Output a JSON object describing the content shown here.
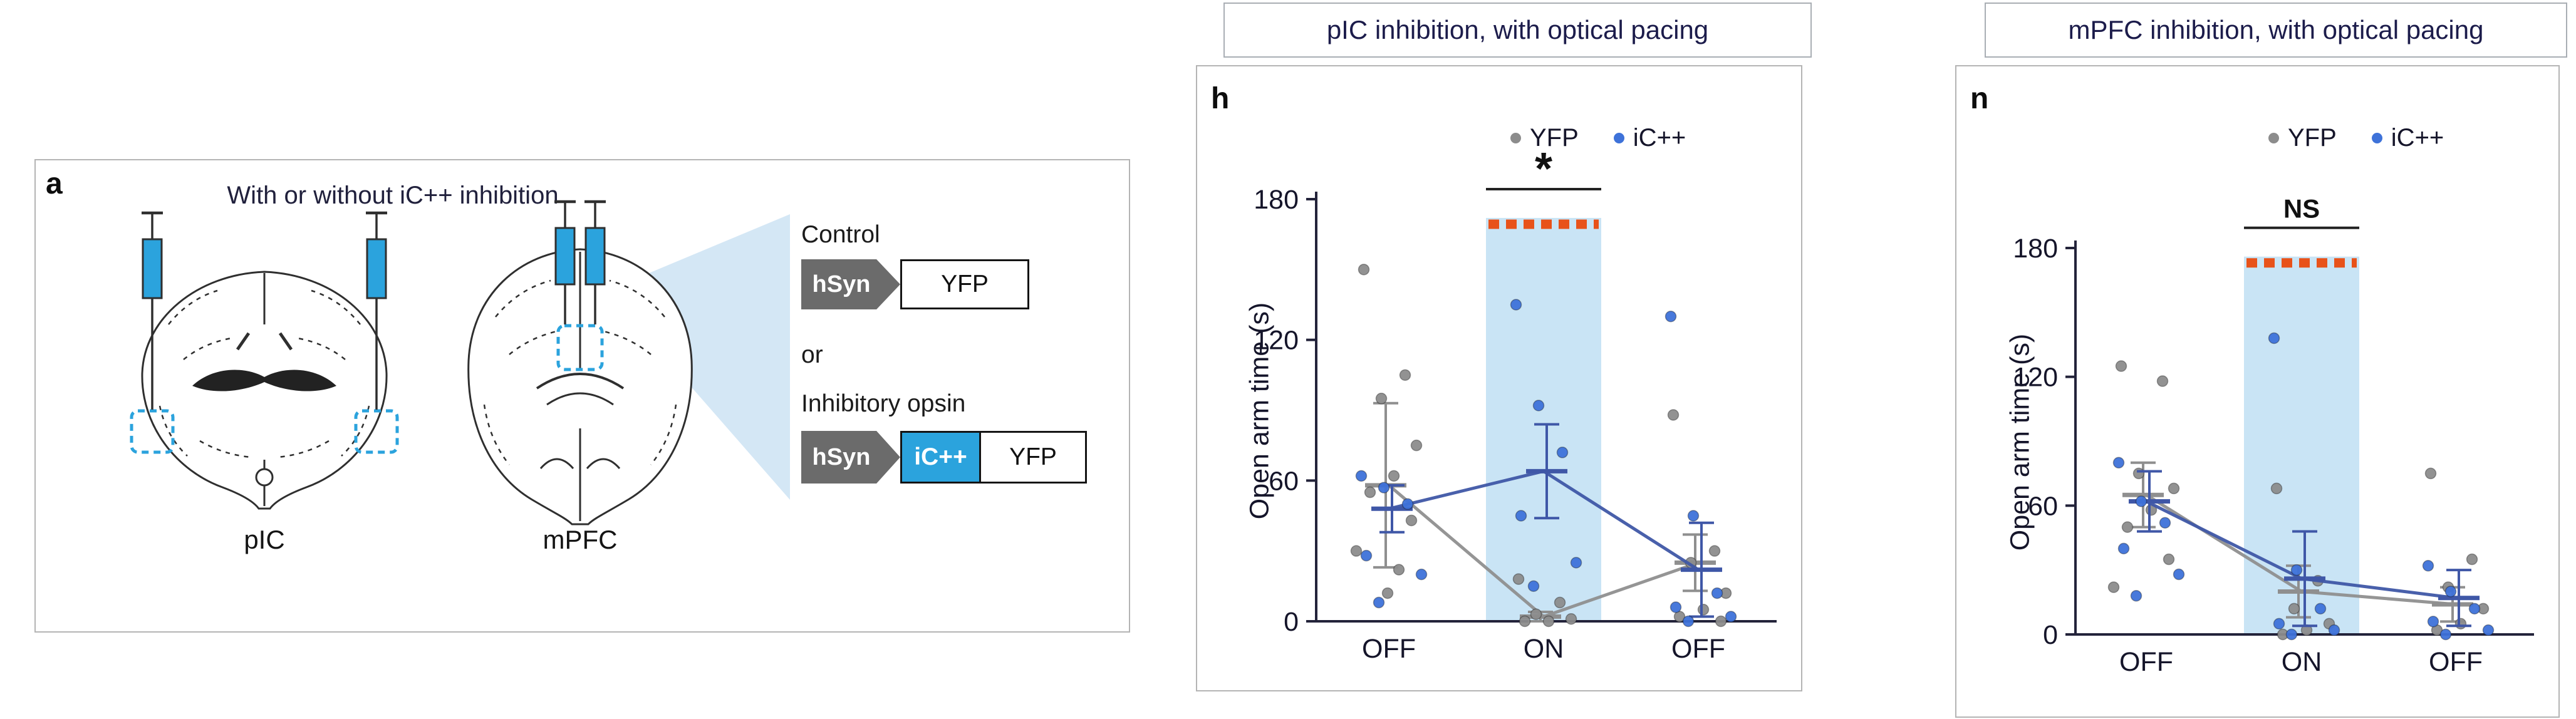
{
  "panel_a": {
    "label": "a",
    "title": "With or without iC++ inhibition",
    "brain_left_label": "pIC",
    "brain_right_label": "mPFC",
    "constructs": {
      "control_label": "Control",
      "or_label": "or",
      "opsin_label": "Inhibitory opsin",
      "promoter": "hSyn",
      "opsin": "iC++",
      "reporter": "YFP"
    },
    "colors": {
      "opsin_blue": "#2ba3dd",
      "promoter_gray": "#6b6b6b",
      "zoom_wedge_blue": "#cfe4f4"
    }
  },
  "chart_data": [
    {
      "id": "h",
      "panel_label": "h",
      "type": "scatter",
      "title": "pIC inhibition, with optical pacing",
      "ylabel": "Open arm time (s)",
      "ylim": [
        0,
        180
      ],
      "yticks": [
        0,
        60,
        120,
        180
      ],
      "categories": [
        "OFF",
        "ON",
        "OFF"
      ],
      "legend_position": "top-right",
      "grid": false,
      "stim_band": {
        "category_index": 1,
        "top_value": 172,
        "fill": "#c9e4f5",
        "dash_color": "#e8521a"
      },
      "significance": {
        "label": "*",
        "over_category": "ON"
      },
      "series": [
        {
          "name": "YFP",
          "point_color": "#8c8c8c",
          "line_color": "#8f8f8f",
          "means": [
            58,
            2,
            25
          ],
          "errors": [
            35,
            2,
            12
          ],
          "points": [
            [
              150,
              105,
              95,
              75,
              62,
              55,
              43,
              30,
              22,
              12
            ],
            [
              18,
              8,
              3,
              1,
              0,
              0
            ],
            [
              88,
              30,
              25,
              12,
              5,
              2,
              0
            ]
          ]
        },
        {
          "name": "iC++",
          "point_color": "#3e72d9",
          "line_color": "#3f57a7",
          "means": [
            48,
            64,
            22
          ],
          "errors": [
            10,
            20,
            20
          ],
          "points": [
            [
              62,
              57,
              50,
              28,
              20,
              8
            ],
            [
              135,
              92,
              72,
              45,
              25,
              15
            ],
            [
              130,
              45,
              12,
              6,
              2,
              0
            ]
          ]
        }
      ]
    },
    {
      "id": "n",
      "panel_label": "n",
      "type": "scatter",
      "title": "mPFC inhibition, with optical pacing",
      "ylabel": "Open arm time (s)",
      "ylim": [
        0,
        180
      ],
      "yticks": [
        0,
        60,
        120,
        180
      ],
      "categories": [
        "OFF",
        "ON",
        "OFF"
      ],
      "legend_position": "top-right",
      "grid": false,
      "stim_band": {
        "category_index": 1,
        "top_value": 176,
        "fill": "#c9e4f5",
        "dash_color": "#e8521a"
      },
      "significance": {
        "label": "NS",
        "over_category": "ON"
      },
      "series": [
        {
          "name": "YFP",
          "point_color": "#8c8c8c",
          "line_color": "#8f8f8f",
          "means": [
            65,
            20,
            14
          ],
          "errors": [
            15,
            12,
            8
          ],
          "points": [
            [
              125,
              118,
              75,
              68,
              58,
              50,
              35,
              22
            ],
            [
              68,
              25,
              12,
              5,
              2,
              0
            ],
            [
              75,
              35,
              22,
              12,
              5,
              2
            ]
          ]
        },
        {
          "name": "iC++",
          "point_color": "#3e72d9",
          "line_color": "#3f57a7",
          "means": [
            62,
            26,
            17
          ],
          "errors": [
            14,
            22,
            13
          ],
          "points": [
            [
              80,
              62,
              52,
              40,
              28,
              18
            ],
            [
              138,
              30,
              12,
              5,
              2,
              0
            ],
            [
              32,
              20,
              12,
              6,
              2,
              0
            ]
          ]
        }
      ]
    }
  ]
}
